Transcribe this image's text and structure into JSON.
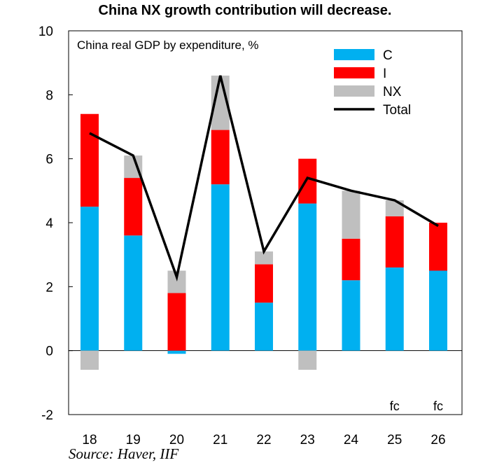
{
  "chart_data": {
    "type": "bar",
    "stacked": true,
    "title": "China NX growth contribution will decrease.",
    "subtitle": "China real GDP by expenditure, %",
    "source": "Source: Haver, IIF",
    "categories": [
      "18",
      "19",
      "20",
      "21",
      "22",
      "23",
      "24",
      "25",
      "26"
    ],
    "forecast_labels": [
      "",
      "",
      "",
      "",
      "",
      "",
      "",
      "fc",
      "fc"
    ],
    "ylim": [
      -2,
      10
    ],
    "yticks": [
      -2,
      0,
      2,
      4,
      6,
      8,
      10
    ],
    "series": [
      {
        "name": "C",
        "kind": "bar",
        "color": "#00b0f0",
        "values": [
          4.5,
          3.6,
          -0.1,
          5.2,
          1.5,
          4.6,
          2.2,
          2.6,
          2.5
        ]
      },
      {
        "name": "I",
        "kind": "bar",
        "color": "#ff0000",
        "values": [
          2.9,
          1.8,
          1.8,
          1.7,
          1.2,
          1.4,
          1.3,
          1.6,
          1.5
        ]
      },
      {
        "name": "NX",
        "kind": "bar",
        "color": "#bfbfbf",
        "values": [
          -0.6,
          0.7,
          0.7,
          1.7,
          0.4,
          -0.6,
          1.5,
          0.5,
          0.0
        ]
      },
      {
        "name": "Total",
        "kind": "line",
        "color": "#000000",
        "values": [
          6.8,
          6.1,
          2.3,
          8.6,
          3.1,
          5.4,
          5.0,
          4.7,
          3.9
        ]
      }
    ],
    "legend_position": "top-right"
  }
}
